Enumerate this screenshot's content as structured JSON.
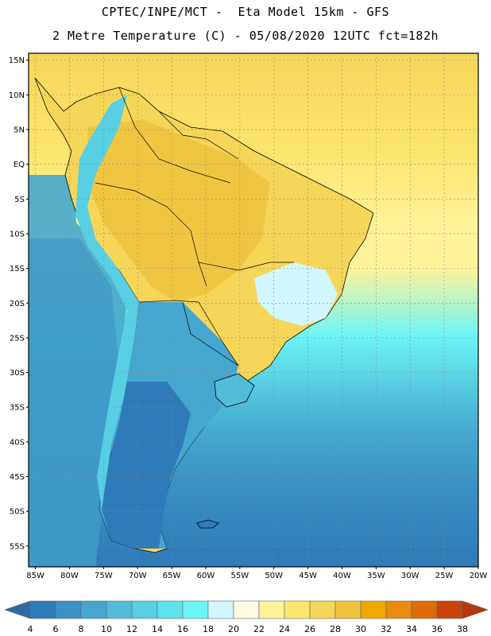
{
  "header": {
    "line1": "CPTEC/INPE/MCT -  Eta Model 15km - GFS",
    "line2": "2 Metre Temperature (C) - 05/08/2020 12UTC fct=182h"
  },
  "map": {
    "lat_labels": [
      "15N",
      "10N",
      "5N",
      "EQ",
      "5S",
      "10S",
      "15S",
      "20S",
      "25S",
      "30S",
      "35S",
      "40S",
      "45S",
      "50S",
      "55S"
    ],
    "lat_values": [
      15,
      10,
      5,
      0,
      -5,
      -10,
      -15,
      -20,
      -25,
      -30,
      -35,
      -40,
      -45,
      -50,
      -55
    ],
    "lon_labels": [
      "85W",
      "80W",
      "75W",
      "70W",
      "65W",
      "60W",
      "55W",
      "50W",
      "45W",
      "40W",
      "35W",
      "30W",
      "25W",
      "20W"
    ],
    "lon_values": [
      -85,
      -80,
      -75,
      -70,
      -65,
      -60,
      -55,
      -50,
      -45,
      -40,
      -35,
      -30,
      -25,
      -20
    ],
    "extent": {
      "lon_min": -86,
      "lon_max": -20,
      "lat_min": -58,
      "lat_max": 16
    },
    "grid": true
  },
  "colorbar": {
    "labels": [
      "4",
      "6",
      "8",
      "10",
      "12",
      "14",
      "16",
      "18",
      "20",
      "22",
      "24",
      "26",
      "28",
      "30",
      "32",
      "34",
      "36",
      "38"
    ],
    "colors": [
      "#2c6aa8",
      "#2f7ab8",
      "#3a91c4",
      "#45a7cf",
      "#52bcd9",
      "#58cfe3",
      "#5fe2ee",
      "#6cf5f7",
      "#d2f7fd",
      "#fffbe2",
      "#fff39a",
      "#fbe56e",
      "#f6d659",
      "#efc33d",
      "#f0a800",
      "#e98c11",
      "#df6a07",
      "#c8440a",
      "#b53610"
    ]
  }
}
